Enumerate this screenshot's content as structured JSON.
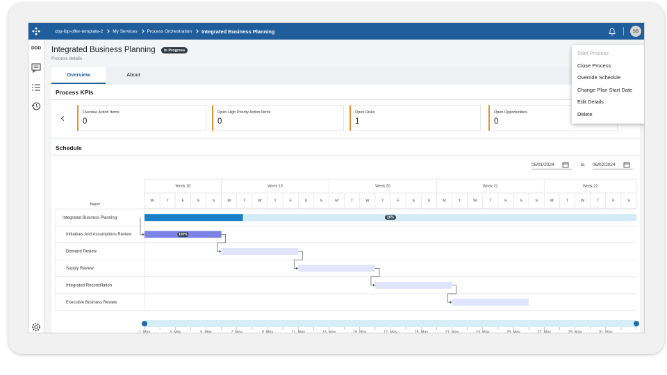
{
  "topbar": {
    "breadcrumb": [
      "cbp-ibp-offer-template-2",
      "My Services",
      "Process Orchestration",
      "Integrated Business Planning"
    ],
    "avatar": "SB"
  },
  "sidebar": {
    "label": "DDD"
  },
  "header": {
    "title": "Integrated Business Planning",
    "status": "In Progress",
    "subtitle": "Process details"
  },
  "tabs": [
    "Overview",
    "About"
  ],
  "kpis": {
    "title": "Process KPIs",
    "cards": [
      {
        "label": "Overdue Action Items",
        "value": 0
      },
      {
        "label": "Open High Priority Action Items",
        "value": 0
      },
      {
        "label": "Open Risks",
        "value": 1
      },
      {
        "label": "Open Opportunities",
        "value": 0
      }
    ]
  },
  "menu": [
    "Start Process",
    "Close Process",
    "Override Schedule",
    "Change Plan Start Date",
    "Edit Details",
    "Delete"
  ],
  "schedule": {
    "title": "Schedule",
    "start_date": "05/01/2024",
    "to": "to",
    "end_date": "06/02/2024",
    "name_header": "Name",
    "weeks": [
      {
        "label": "Week 18",
        "days": [
          "W",
          "T",
          "F",
          "S",
          "S"
        ]
      },
      {
        "label": "Week 19",
        "days": [
          "M",
          "T",
          "W",
          "T",
          "F",
          "S",
          "S"
        ]
      },
      {
        "label": "Week 20",
        "days": [
          "M",
          "T",
          "W",
          "T",
          "F",
          "S",
          "S"
        ]
      },
      {
        "label": "Week 21",
        "days": [
          "M",
          "T",
          "W",
          "T",
          "F",
          "S",
          "S"
        ]
      },
      {
        "label": "Week 22",
        "days": [
          "M",
          "T",
          "W",
          "T",
          "F",
          "S"
        ]
      }
    ],
    "tasks": [
      {
        "name": "Integrated Business Planning",
        "progress_label": "20%"
      },
      {
        "name": "Initiatives And Assumptions Review",
        "progress_label": "100%"
      },
      {
        "name": "Demand Review"
      },
      {
        "name": "Supply Review"
      },
      {
        "name": "Integrated Reconcillation"
      },
      {
        "name": "Executive Business Review"
      }
    ],
    "timeline_labels": [
      "1. May",
      "3. May",
      "5. May",
      "7. May",
      "9. May",
      "11. May",
      "13. May",
      "15. May",
      "17. May",
      "19. May",
      "21. May",
      "23. May",
      "25. May",
      "27. May",
      "29. May",
      "31. May"
    ]
  }
}
